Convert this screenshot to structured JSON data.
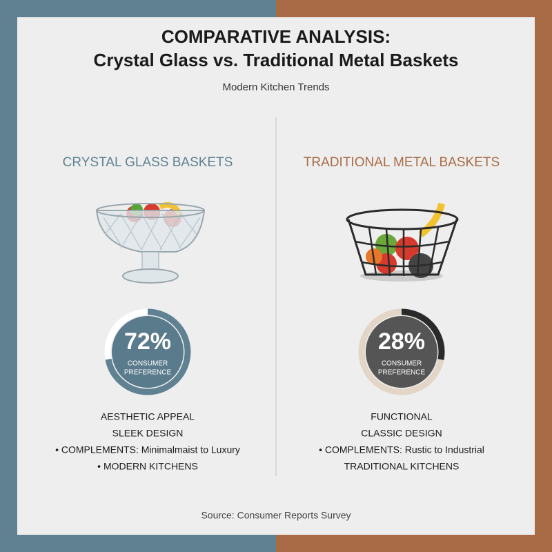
{
  "header": {
    "title_lines": [
      "COMPARATIVE ANALYSIS:",
      "Crystal Glass vs. Traditional Metal Baskets"
    ],
    "subtitle": "Modern Kitchen Trends"
  },
  "panels": [
    {
      "heading": "CRYSTAL GLASS BASKETS",
      "preference": {
        "value": 72,
        "label": "72%"
      },
      "preference_caption": [
        "CONSUMER",
        "PREFERENCE"
      ],
      "features": [
        "AESTHETIC APPEAL",
        "SLEEK DESIGN",
        "• COMPLEMENTS: Minimalmaist to Luxury",
        "• MODERN KITCHENS"
      ]
    },
    {
      "heading": "TRADITIONAL METAL BASKETS",
      "preference": {
        "value": 28,
        "label": "28%"
      },
      "preference_caption": [
        "CONSUMER",
        "PREFERENCE"
      ],
      "features": [
        "FUNCTIONAL",
        "CLASSIC DESIGN",
        "• COMPLEMENTS: Rustic to Industrial",
        "TRADITIONAL KITCHENS"
      ]
    }
  ],
  "footer": {
    "source": "Source: Consumer Reports Survey"
  }
}
